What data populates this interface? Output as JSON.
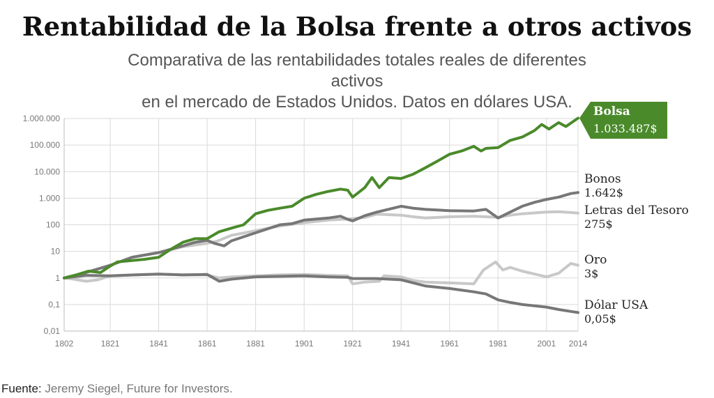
{
  "header": {
    "title": "Rentabilidad de la Bolsa frente a otros activos",
    "subtitle_line1": "Comparativa de las rentabilidades totales reales de diferentes activos",
    "subtitle_line2": "en el mercado de Estados Unidos. Datos en dólares USA."
  },
  "footer": {
    "source_label": "Fuente:",
    "source_text": "Jeremy Siegel, Future for Investors."
  },
  "colors": {
    "bolsa": "#4a8a2a",
    "dark_gray": "#777777",
    "light_gray": "#c8c8c8",
    "grid": "#d9d9d9"
  },
  "chart_data": {
    "type": "line",
    "title": "Rentabilidad de la Bolsa frente a otros activos",
    "xlabel": "",
    "ylabel": "",
    "yscale": "log",
    "xlim": [
      1802,
      2014
    ],
    "ylim": [
      0.01,
      1000000
    ],
    "x_ticks": [
      "1802",
      "1821",
      "1841",
      "1861",
      "1881",
      "1901",
      "1921",
      "1941",
      "1961",
      "1981",
      "2001",
      "2014"
    ],
    "y_ticks": [
      {
        "value": 0.01,
        "label": "0,01"
      },
      {
        "value": 0.1,
        "label": "0,1"
      },
      {
        "value": 1,
        "label": "1"
      },
      {
        "value": 10,
        "label": "10"
      },
      {
        "value": 100,
        "label": "100"
      },
      {
        "value": 1000,
        "label": "1.000"
      },
      {
        "value": 10000,
        "label": "10.000"
      },
      {
        "value": 100000,
        "label": "100.000"
      },
      {
        "value": 1000000,
        "label": "1.000.000"
      }
    ],
    "series": [
      {
        "name": "Bolsa",
        "end_label": "1.033.487$",
        "color": "#4a8a2a",
        "points": [
          [
            1802,
            1
          ],
          [
            1807,
            1.3
          ],
          [
            1812,
            1.8
          ],
          [
            1817,
            1.6
          ],
          [
            1821,
            2.8
          ],
          [
            1824,
            4
          ],
          [
            1830,
            4.5
          ],
          [
            1835,
            5
          ],
          [
            1841,
            6
          ],
          [
            1846,
            12
          ],
          [
            1851,
            22
          ],
          [
            1856,
            30
          ],
          [
            1861,
            30
          ],
          [
            1866,
            55
          ],
          [
            1871,
            75
          ],
          [
            1876,
            100
          ],
          [
            1881,
            260
          ],
          [
            1886,
            350
          ],
          [
            1891,
            420
          ],
          [
            1896,
            500
          ],
          [
            1901,
            1000
          ],
          [
            1906,
            1400
          ],
          [
            1911,
            1800
          ],
          [
            1916,
            2200
          ],
          [
            1919,
            2000
          ],
          [
            1921,
            1100
          ],
          [
            1926,
            2500
          ],
          [
            1929,
            6000
          ],
          [
            1932,
            2500
          ],
          [
            1936,
            6000
          ],
          [
            1941,
            5500
          ],
          [
            1946,
            8000
          ],
          [
            1951,
            14000
          ],
          [
            1956,
            25000
          ],
          [
            1961,
            45000
          ],
          [
            1966,
            60000
          ],
          [
            1971,
            90000
          ],
          [
            1974,
            60000
          ],
          [
            1976,
            75000
          ],
          [
            1981,
            80000
          ],
          [
            1986,
            150000
          ],
          [
            1991,
            200000
          ],
          [
            1996,
            350000
          ],
          [
            1999,
            600000
          ],
          [
            2002,
            400000
          ],
          [
            2006,
            700000
          ],
          [
            2009,
            500000
          ],
          [
            2014,
            1033487
          ]
        ]
      },
      {
        "name": "Bonos",
        "end_label": "1.642$",
        "color": "#777777",
        "points": [
          [
            1802,
            1
          ],
          [
            1810,
            1.5
          ],
          [
            1821,
            3
          ],
          [
            1830,
            6
          ],
          [
            1841,
            9
          ],
          [
            1851,
            16
          ],
          [
            1856,
            22
          ],
          [
            1861,
            26
          ],
          [
            1864,
            20
          ],
          [
            1868,
            16
          ],
          [
            1871,
            25
          ],
          [
            1881,
            50
          ],
          [
            1891,
            100
          ],
          [
            1896,
            110
          ],
          [
            1901,
            150
          ],
          [
            1911,
            180
          ],
          [
            1916,
            210
          ],
          [
            1919,
            160
          ],
          [
            1921,
            140
          ],
          [
            1926,
            220
          ],
          [
            1931,
            300
          ],
          [
            1941,
            500
          ],
          [
            1946,
            420
          ],
          [
            1951,
            380
          ],
          [
            1961,
            340
          ],
          [
            1971,
            330
          ],
          [
            1976,
            380
          ],
          [
            1981,
            180
          ],
          [
            1986,
            300
          ],
          [
            1991,
            500
          ],
          [
            1996,
            700
          ],
          [
            2001,
            900
          ],
          [
            2006,
            1100
          ],
          [
            2011,
            1500
          ],
          [
            2014,
            1642
          ]
        ]
      },
      {
        "name": "Letras del Tesoro",
        "end_label": "275$",
        "color": "#c8c8c8",
        "points": [
          [
            1802,
            1
          ],
          [
            1810,
            1.5
          ],
          [
            1821,
            3
          ],
          [
            1830,
            6
          ],
          [
            1841,
            9
          ],
          [
            1851,
            15
          ],
          [
            1861,
            20
          ],
          [
            1865,
            24
          ],
          [
            1871,
            40
          ],
          [
            1881,
            60
          ],
          [
            1891,
            90
          ],
          [
            1901,
            120
          ],
          [
            1911,
            150
          ],
          [
            1921,
            170
          ],
          [
            1926,
            190
          ],
          [
            1931,
            250
          ],
          [
            1941,
            230
          ],
          [
            1946,
            200
          ],
          [
            1951,
            180
          ],
          [
            1961,
            200
          ],
          [
            1971,
            210
          ],
          [
            1976,
            200
          ],
          [
            1981,
            190
          ],
          [
            1986,
            230
          ],
          [
            1991,
            260
          ],
          [
            2001,
            300
          ],
          [
            2006,
            310
          ],
          [
            2011,
            290
          ],
          [
            2014,
            275
          ]
        ]
      },
      {
        "name": "Oro",
        "end_label": "3$",
        "color": "#c8c8c8",
        "points": [
          [
            1802,
            1
          ],
          [
            1806,
            0.9
          ],
          [
            1811,
            0.75
          ],
          [
            1816,
            0.85
          ],
          [
            1821,
            1.2
          ],
          [
            1831,
            1.3
          ],
          [
            1841,
            1.4
          ],
          [
            1851,
            1.3
          ],
          [
            1861,
            1.3
          ],
          [
            1866,
            1
          ],
          [
            1871,
            1.1
          ],
          [
            1881,
            1.2
          ],
          [
            1891,
            1.3
          ],
          [
            1901,
            1.35
          ],
          [
            1911,
            1.25
          ],
          [
            1919,
            1.2
          ],
          [
            1921,
            0.6
          ],
          [
            1926,
            0.7
          ],
          [
            1932,
            0.75
          ],
          [
            1934,
            1.2
          ],
          [
            1941,
            1.1
          ],
          [
            1946,
            0.8
          ],
          [
            1951,
            0.7
          ],
          [
            1961,
            0.65
          ],
          [
            1971,
            0.6
          ],
          [
            1975,
            2
          ],
          [
            1980,
            4
          ],
          [
            1983,
            2
          ],
          [
            1986,
            2.5
          ],
          [
            1991,
            1.8
          ],
          [
            2001,
            1.1
          ],
          [
            2006,
            1.5
          ],
          [
            2011,
            3.5
          ],
          [
            2014,
            3
          ]
        ]
      },
      {
        "name": "Dólar USA",
        "end_label": "0,05$",
        "color": "#777777",
        "points": [
          [
            1802,
            1
          ],
          [
            1811,
            1.25
          ],
          [
            1821,
            1.2
          ],
          [
            1831,
            1.3
          ],
          [
            1841,
            1.4
          ],
          [
            1851,
            1.3
          ],
          [
            1861,
            1.35
          ],
          [
            1866,
            0.75
          ],
          [
            1871,
            0.9
          ],
          [
            1881,
            1.1
          ],
          [
            1901,
            1.2
          ],
          [
            1911,
            1.1
          ],
          [
            1919,
            1.05
          ],
          [
            1921,
            0.95
          ],
          [
            1931,
            0.95
          ],
          [
            1941,
            0.85
          ],
          [
            1951,
            0.5
          ],
          [
            1961,
            0.4
          ],
          [
            1971,
            0.3
          ],
          [
            1976,
            0.25
          ],
          [
            1981,
            0.15
          ],
          [
            1986,
            0.12
          ],
          [
            1991,
            0.1
          ],
          [
            2001,
            0.08
          ],
          [
            2006,
            0.065
          ],
          [
            2011,
            0.055
          ],
          [
            2014,
            0.05
          ]
        ]
      }
    ]
  }
}
